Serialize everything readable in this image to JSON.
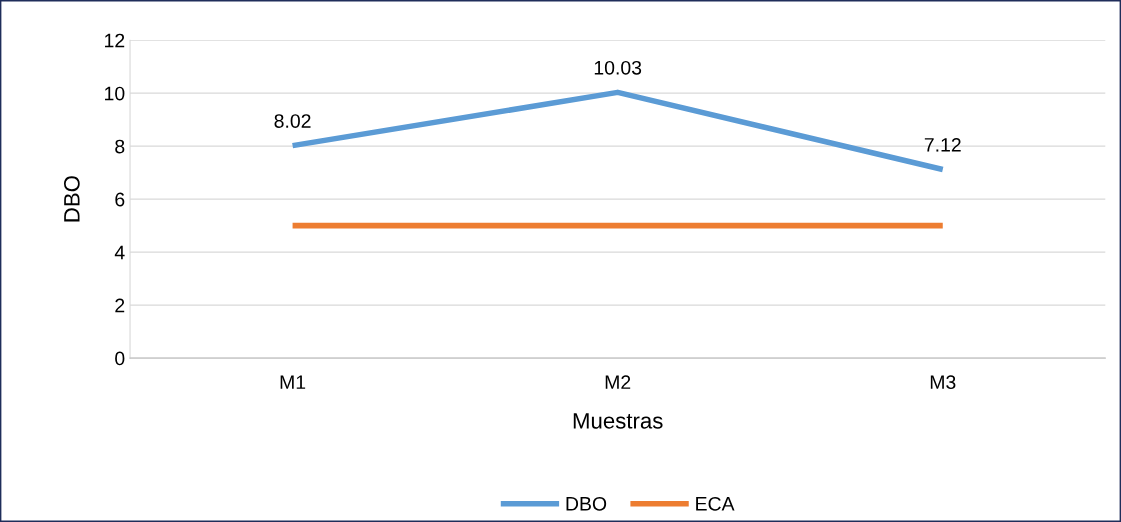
{
  "chart_data": {
    "type": "line",
    "xlabel": "Muestras",
    "ylabel": "DBO",
    "categories": [
      "M1",
      "M2",
      "M3"
    ],
    "series": [
      {
        "name": "DBO",
        "color": "#5b9bd5",
        "values": [
          8.02,
          10.03,
          7.12
        ],
        "value_labels": [
          "8.02",
          "10.03",
          "7.12"
        ]
      },
      {
        "name": "ECA",
        "color": "#ed7d31",
        "values": [
          5,
          5,
          5
        ]
      }
    ],
    "ylim": [
      0,
      12
    ],
    "yticks": [
      0,
      2,
      4,
      6,
      8,
      10,
      12
    ],
    "grid": "y",
    "legend": "bottom",
    "marker": "none",
    "line_style": "solid"
  }
}
